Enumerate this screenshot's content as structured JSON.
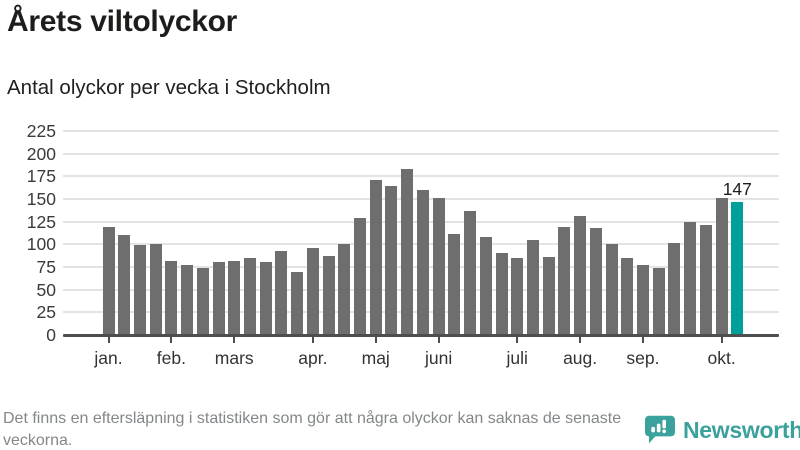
{
  "header": {
    "title": "Årets viltolyckor",
    "subtitle": "Antal olyckor per vecka i Stockholm"
  },
  "chart_data": {
    "type": "bar",
    "title": "Årets viltolyckor",
    "subtitle": "Antal olyckor per vecka i Stockholm",
    "values": [
      119,
      110,
      99,
      100,
      82,
      77,
      74,
      81,
      82,
      85,
      81,
      93,
      70,
      96,
      87,
      100,
      129,
      171,
      165,
      183,
      160,
      151,
      111,
      137,
      108,
      90,
      85,
      105,
      86,
      119,
      131,
      118,
      100,
      85,
      77,
      74,
      101,
      125,
      121,
      151,
      147
    ],
    "yticks": [
      0,
      25,
      50,
      75,
      100,
      125,
      150,
      175,
      200,
      225
    ],
    "ylim": [
      0,
      235
    ],
    "grid": true,
    "legend": false,
    "xticks": [
      {
        "label": "jan.",
        "index": 0
      },
      {
        "label": "feb.",
        "index": 4
      },
      {
        "label": "mars",
        "index": 8
      },
      {
        "label": "apr.",
        "index": 13
      },
      {
        "label": "maj",
        "index": 17
      },
      {
        "label": "juni",
        "index": 21
      },
      {
        "label": "juli",
        "index": 26
      },
      {
        "label": "aug.",
        "index": 30
      },
      {
        "label": "sep.",
        "index": 34
      },
      {
        "label": "okt.",
        "index": 39
      }
    ],
    "highlight": {
      "index": 40,
      "value_label": "147"
    },
    "bar_color": "#6e6e6e",
    "highlight_color": "#00a09a"
  },
  "footer": {
    "note": "Det finns en eftersläpning i statistiken som gör att några olyckor kan saknas de senaste veckorna.",
    "brand": "Newsworthy"
  },
  "colors": {
    "accent_teal": "#00a09a",
    "bar_gray": "#6e6e6e",
    "gridline": "#e4e4e4",
    "axis": "#4e4e4e",
    "text_dark": "#1d1d1b",
    "text_muted": "#838789",
    "logo_teal": "#3ba19c"
  }
}
